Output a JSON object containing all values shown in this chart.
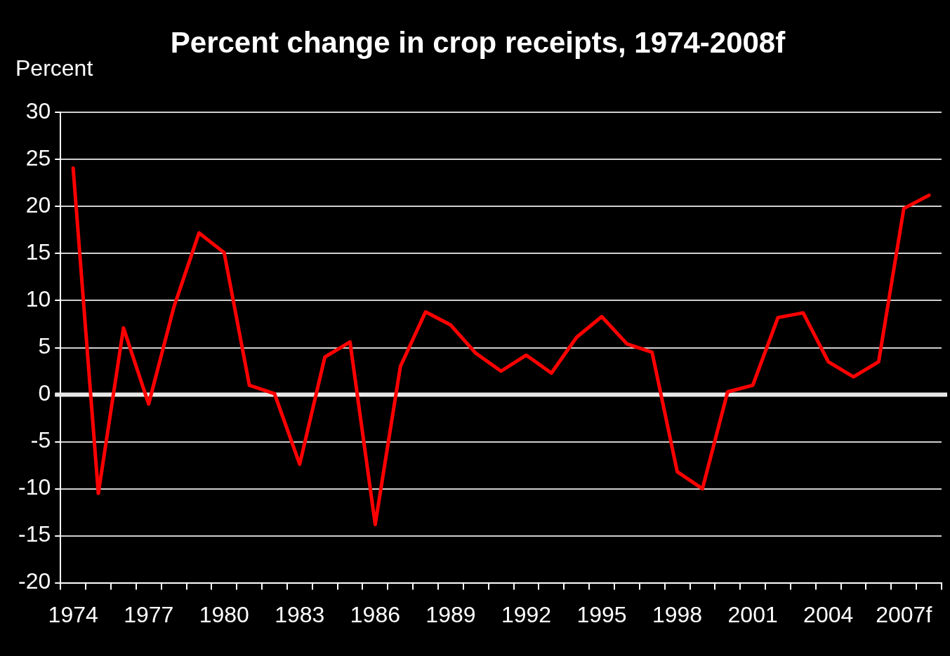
{
  "chart_data": {
    "type": "line",
    "title": "Percent change in crop receipts, 1974-2008f",
    "ylabel": "Percent",
    "categories": [
      "1974",
      null,
      null,
      "1977",
      null,
      null,
      "1980",
      null,
      null,
      "1983",
      null,
      null,
      "1986",
      null,
      null,
      "1989",
      null,
      null,
      "1992",
      null,
      null,
      "1995",
      null,
      null,
      "1998",
      null,
      null,
      "2001",
      null,
      null,
      "2004",
      null,
      null,
      "2007f",
      null
    ],
    "series": [
      {
        "color": "#ff0000",
        "values": [
          24.1,
          -10.5,
          7.1,
          -1.0,
          9.3,
          17.2,
          15.1,
          1.0,
          0.1,
          -7.4,
          4.0,
          5.6,
          -13.8,
          3.0,
          8.8,
          7.4,
          4.4,
          2.5,
          4.2,
          2.3,
          6.1,
          8.3,
          5.4,
          4.5,
          -8.2,
          -10.0,
          0.3,
          1.0,
          8.2,
          8.7,
          3.5,
          1.9,
          3.5,
          19.8,
          21.2
        ]
      }
    ],
    "ylim": [
      -20,
      30
    ],
    "yticks": [
      -20,
      -15,
      -10,
      -5,
      0,
      5,
      10,
      15,
      20,
      25,
      30
    ],
    "grid": "y",
    "legend": false,
    "marker": "none",
    "line_style": "solid",
    "ref_lines": [
      {
        "axis": "y",
        "value": 0,
        "color": "#e8e8e8"
      }
    ]
  }
}
